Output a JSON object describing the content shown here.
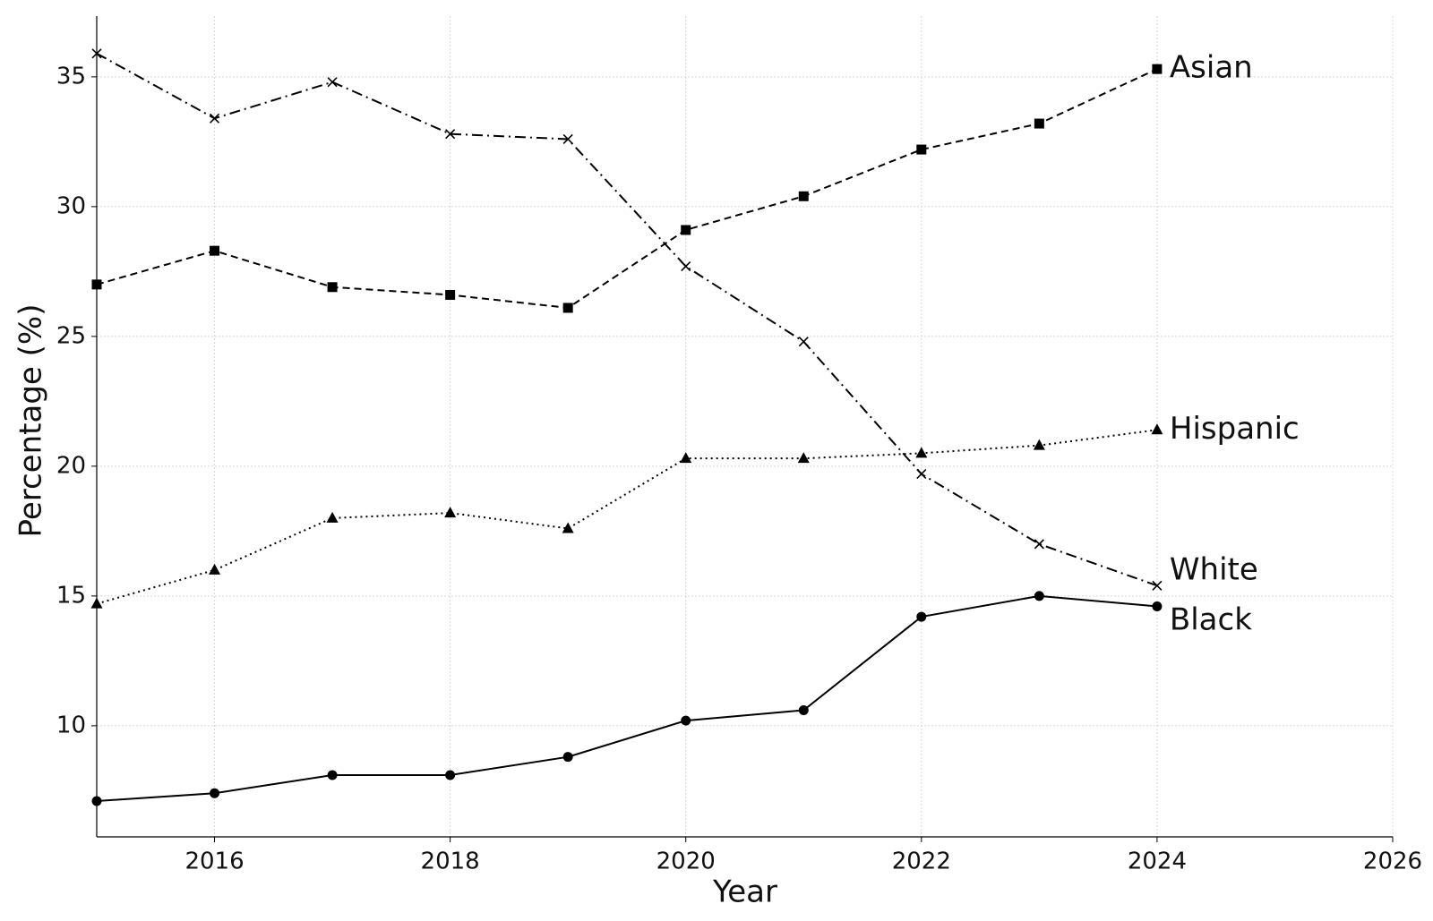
{
  "chart_data": {
    "type": "line",
    "xlabel": "Year",
    "ylabel": "Percentage (%)",
    "x": [
      2015,
      2016,
      2017,
      2018,
      2019,
      2020,
      2021,
      2022,
      2023,
      2024
    ],
    "xlim": [
      2015,
      2026
    ],
    "xticks": [
      2016,
      2018,
      2020,
      2022,
      2024,
      2026
    ],
    "ylim": [
      5.72,
      37.34
    ],
    "yticks": [
      10,
      15,
      20,
      25,
      30,
      35
    ],
    "grid": true,
    "series": [
      {
        "name": "Asian",
        "color": "#000000",
        "dash": "dashed",
        "marker": "square",
        "values": [
          27.0,
          28.3,
          26.9,
          26.6,
          26.1,
          29.1,
          30.4,
          32.2,
          33.2,
          35.3
        ]
      },
      {
        "name": "White",
        "color": "#000000",
        "dash": "dashdot",
        "marker": "x",
        "values": [
          35.9,
          33.4,
          34.8,
          32.8,
          32.6,
          27.7,
          24.8,
          19.7,
          17.0,
          15.4
        ]
      },
      {
        "name": "Hispanic",
        "color": "#000000",
        "dash": "dotted",
        "marker": "triangle",
        "values": [
          14.7,
          16.0,
          18.0,
          18.2,
          17.6,
          20.3,
          20.3,
          20.5,
          20.8,
          21.4
        ]
      },
      {
        "name": "Black",
        "color": "#000000",
        "dash": "solid",
        "marker": "circle",
        "values": [
          7.1,
          7.4,
          8.1,
          8.1,
          8.8,
          10.2,
          10.6,
          14.2,
          15.0,
          14.6
        ]
      }
    ]
  }
}
